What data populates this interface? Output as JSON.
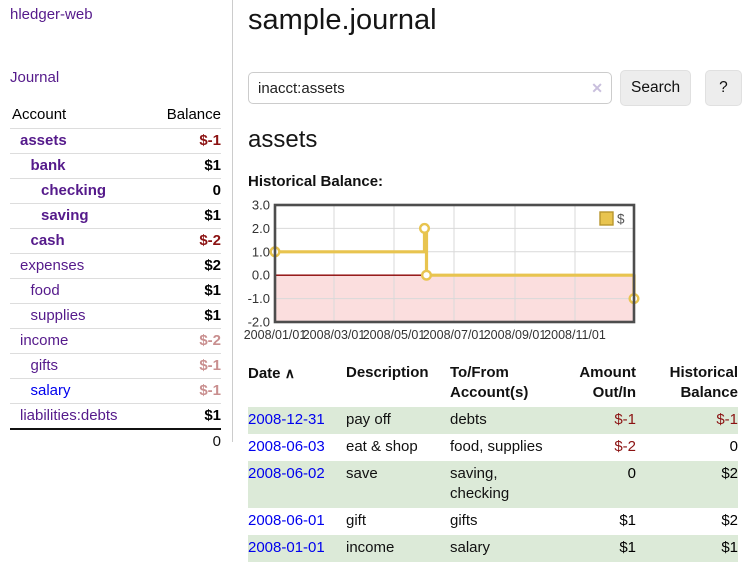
{
  "app": {
    "title": "hledger-web"
  },
  "sidebar": {
    "journal_link": "Journal",
    "table": {
      "account_header": "Account",
      "balance_header": "Balance",
      "rows": [
        {
          "label": "assets",
          "depth": 0,
          "bold": true,
          "balance": "$-1",
          "tone": "neg"
        },
        {
          "label": "bank",
          "depth": 1,
          "bold": true,
          "balance": "$1",
          "tone": "pos"
        },
        {
          "label": "checking",
          "depth": 2,
          "bold": true,
          "balance": "0",
          "tone": "pos"
        },
        {
          "label": "saving",
          "depth": 2,
          "bold": true,
          "balance": "$1",
          "tone": "pos"
        },
        {
          "label": "cash",
          "depth": 1,
          "bold": true,
          "balance": "$-2",
          "tone": "neg"
        },
        {
          "label": "expenses",
          "depth": 0,
          "bold": false,
          "balance": "$2",
          "tone": "pos"
        },
        {
          "label": "food",
          "depth": 1,
          "bold": false,
          "balance": "$1",
          "tone": "pos"
        },
        {
          "label": "supplies",
          "depth": 1,
          "bold": false,
          "balance": "$1",
          "tone": "pos"
        },
        {
          "label": "income",
          "depth": 0,
          "bold": false,
          "balance": "$-2",
          "tone": "soft"
        },
        {
          "label": "gifts",
          "depth": 1,
          "bold": false,
          "balance": "$-1",
          "tone": "soft"
        },
        {
          "label": "salary",
          "depth": 1,
          "bold": false,
          "balance": "$-1",
          "tone": "soft",
          "unvisited": true
        },
        {
          "label": "liabilities:debts",
          "depth": 0,
          "bold": false,
          "balance": "$1",
          "tone": "pos"
        }
      ],
      "total": "0"
    }
  },
  "header": {
    "title": "sample.journal"
  },
  "search": {
    "value": "inacct:assets",
    "clear_icon": "✕",
    "button_label": "Search",
    "help_label": "?"
  },
  "account_page": {
    "title": "assets"
  },
  "chart_data": {
    "type": "line",
    "title": "Historical Balance:",
    "step": "after",
    "x_axis": {
      "unit": "date",
      "min_day": 0,
      "max_day": 365,
      "ticks": [
        {
          "day": 0,
          "label": "2008/01/01"
        },
        {
          "day": 60,
          "label": "2008/03/01"
        },
        {
          "day": 121,
          "label": "2008/05/01"
        },
        {
          "day": 182,
          "label": "2008/07/01"
        },
        {
          "day": 244,
          "label": "2008/09/01"
        },
        {
          "day": 305,
          "label": "2008/11/01"
        }
      ]
    },
    "y_axis": {
      "min": -2,
      "max": 3,
      "ticks": [
        {
          "value": 3,
          "label": "3.0"
        },
        {
          "value": 2,
          "label": "2.0"
        },
        {
          "value": 1,
          "label": "1.0"
        },
        {
          "value": 0,
          "label": "0.0"
        },
        {
          "value": -1,
          "label": "-1.0"
        },
        {
          "value": -2,
          "label": "-2.0"
        }
      ]
    },
    "series": [
      {
        "name": "$",
        "color": "#e8c44f",
        "marker_fill": "#ffffff",
        "points": [
          {
            "date": "2008-01-01",
            "day": 0,
            "value": 1
          },
          {
            "date": "2008-06-01",
            "day": 152,
            "value": 2
          },
          {
            "date": "2008-06-03",
            "day": 154,
            "value": 0
          },
          {
            "date": "2008-12-31",
            "day": 365,
            "value": -1
          }
        ]
      }
    ],
    "legend": {
      "position": "top-right",
      "label": "$",
      "swatch_color": "#e8c44f",
      "swatch_border": "#b8962e"
    },
    "styles": {
      "negative_region": "#fbdede",
      "zero_line": "#8b0000",
      "grid": "#d9d9d9",
      "border": "#4d4d4d",
      "tick_text": "#333333"
    }
  },
  "register": {
    "headers": {
      "date": "Date",
      "sort_icon": "∧",
      "description": "Description",
      "accounts": "To/From Account(s)",
      "amount": "Amount Out/In",
      "balance": "Historical Balance"
    },
    "rows": [
      {
        "date": "2008-12-31",
        "description": "pay off",
        "accounts": "debts",
        "amount": "$-1",
        "amount_tone": "neg",
        "balance": "$-1",
        "balance_tone": "neg"
      },
      {
        "date": "2008-06-03",
        "description": "eat & shop",
        "accounts": "food, supplies",
        "amount": "$-2",
        "amount_tone": "neg",
        "balance": "0",
        "balance_tone": "pos"
      },
      {
        "date": "2008-06-02",
        "description": "save",
        "accounts": "saving, checking",
        "amount": "0",
        "amount_tone": "pos",
        "balance": "$2",
        "balance_tone": "pos"
      },
      {
        "date": "2008-06-01",
        "description": "gift",
        "accounts": "gifts",
        "amount": "$1",
        "amount_tone": "pos",
        "balance": "$2",
        "balance_tone": "pos"
      },
      {
        "date": "2008-01-01",
        "description": "income",
        "accounts": "salary",
        "amount": "$1",
        "amount_tone": "pos",
        "balance": "$1",
        "balance_tone": "pos"
      }
    ]
  },
  "colors": {
    "link_purple": "#551a8b",
    "link_blue": "#0000ee",
    "negative_strong": "#8b1212",
    "negative_soft": "#c98f8f",
    "row_green": "#dcead8",
    "chart_gold": "#e8c44f"
  }
}
